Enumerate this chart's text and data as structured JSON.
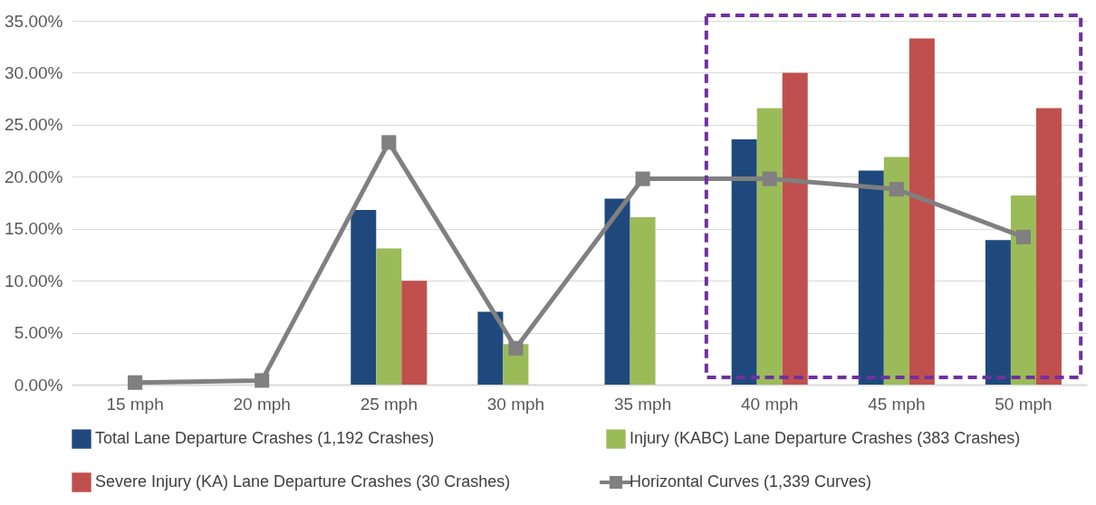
{
  "chart_data": {
    "type": "bar",
    "categories": [
      "15 mph",
      "20 mph",
      "25 mph",
      "30 mph",
      "35 mph",
      "40 mph",
      "45 mph",
      "50 mph"
    ],
    "series": [
      {
        "name": "Total Lane Departure Crashes (1,192 Crashes)",
        "color": "#1f497d",
        "values": [
          null,
          null,
          16.8,
          7.0,
          17.9,
          23.6,
          20.6,
          13.9
        ]
      },
      {
        "name": "Injury (KABC) Lane Departure Crashes (383 Crashes)",
        "color": "#9bbb59",
        "values": [
          null,
          null,
          13.1,
          3.9,
          16.1,
          26.6,
          21.9,
          18.2
        ]
      },
      {
        "name": "Severe Injury (KA) Lane Departure Crashes (30 Crashes)",
        "color": "#c0504d",
        "values": [
          null,
          null,
          10.0,
          null,
          null,
          30.0,
          33.3,
          26.6
        ]
      },
      {
        "name": "Horizontal Curves (1,339 Curves)",
        "color": "#808080",
        "type": "line",
        "marker": "square",
        "values": [
          0.2,
          0.4,
          23.3,
          3.5,
          19.8,
          19.8,
          18.8,
          14.2
        ]
      }
    ],
    "ylim": [
      0,
      35
    ],
    "yticks": [
      {
        "value": 0,
        "label": "0.00%"
      },
      {
        "value": 5,
        "label": "5.00%"
      },
      {
        "value": 10,
        "label": "10.00%"
      },
      {
        "value": 15,
        "label": "15.00%"
      },
      {
        "value": 20,
        "label": "20.00%"
      },
      {
        "value": 25,
        "label": "25.00%"
      },
      {
        "value": 30,
        "label": "30.00%"
      },
      {
        "value": 35,
        "label": "35.00%"
      }
    ],
    "grid": "y",
    "legend": "bottom"
  }
}
